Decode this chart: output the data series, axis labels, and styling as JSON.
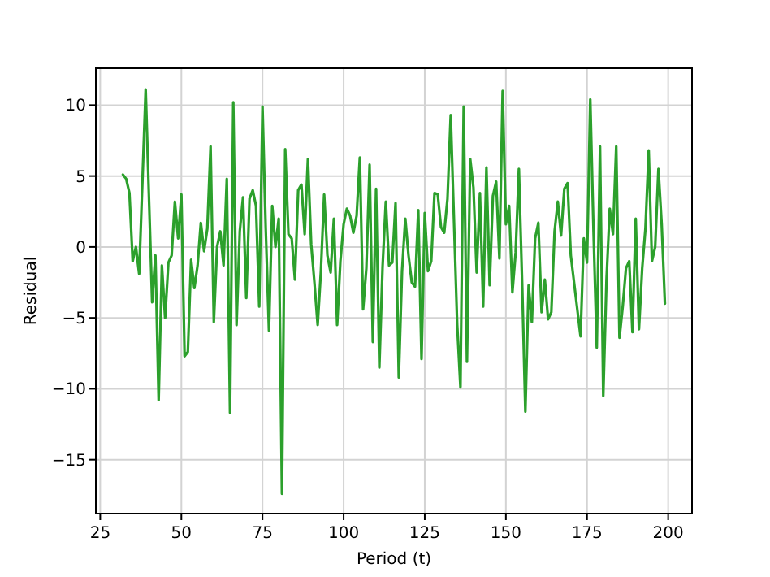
{
  "chart_data": {
    "type": "line",
    "xlabel": "Period (t)",
    "ylabel": "Residual",
    "xlim": [
      23.65,
      207.35
    ],
    "xticks": [
      25,
      50,
      75,
      100,
      125,
      150,
      175,
      200
    ],
    "ylim": [
      -18.8,
      12.6
    ],
    "yticks": [
      -15,
      -10,
      -5,
      0,
      5,
      10
    ],
    "grid": true,
    "marker": "none",
    "line_style": "solid",
    "series": [
      {
        "color": "#2ca02c",
        "x": [
          32,
          33,
          34,
          35,
          36,
          37,
          39,
          41,
          42,
          43,
          44,
          45,
          46,
          47,
          48,
          49,
          50,
          51,
          52,
          53,
          54,
          55,
          56,
          57,
          58,
          59,
          60,
          61,
          62,
          63,
          64,
          65,
          66,
          67,
          68,
          69,
          70,
          71,
          72,
          73,
          74,
          75,
          76,
          77,
          78,
          79,
          80,
          81,
          82,
          83,
          84,
          85,
          86,
          87,
          88,
          89,
          90,
          91,
          92,
          93,
          94,
          95,
          96,
          97,
          98,
          99,
          100,
          101,
          102,
          103,
          104,
          105,
          106,
          107,
          108,
          109,
          110,
          111,
          112,
          113,
          114,
          115,
          116,
          117,
          118,
          119,
          120,
          121,
          122,
          123,
          124,
          125,
          126,
          127,
          128,
          129,
          130,
          131,
          132,
          133,
          134,
          135,
          136,
          137,
          138,
          139,
          140,
          141,
          142,
          143,
          144,
          145,
          146,
          147,
          148,
          149,
          150,
          151,
          152,
          153,
          154,
          155,
          156,
          157,
          158,
          159,
          160,
          161,
          162,
          163,
          164,
          165,
          166,
          167,
          168,
          169,
          170,
          173,
          174,
          175,
          176,
          177,
          178,
          179,
          180,
          181,
          182,
          183,
          184,
          185,
          186,
          187,
          188,
          189,
          190,
          191,
          192,
          193,
          194,
          195,
          196,
          197,
          198,
          199
        ],
        "values": [
          5.1,
          4.8,
          3.8,
          -1.0,
          0,
          -1.9,
          11.1,
          -3.9,
          -0.6,
          -10.8,
          -1.3,
          -5.0,
          -1.1,
          -0.6,
          3.2,
          0.6,
          3.7,
          -7.7,
          -7.4,
          -0.9,
          -2.9,
          -1.3,
          1.7,
          -0.3,
          1.3,
          7.1,
          -5.3,
          0,
          1.1,
          -1.3,
          4.8,
          -11.7,
          10.2,
          -5.5,
          1.1,
          3.5,
          -3.6,
          3.4,
          4.0,
          2.9,
          -4.2,
          9.9,
          1.3,
          -5.9,
          2.9,
          0,
          2.0,
          -17.4,
          6.9,
          0.9,
          0.6,
          -2.3,
          4.0,
          4.4,
          0.9,
          6.2,
          0.2,
          -2.5,
          -5.5,
          -1.7,
          3.7,
          -0.6,
          -1.8,
          2.0,
          -5.5,
          -1.0,
          1.6,
          2.7,
          2.2,
          1.0,
          2.2,
          6.3,
          -4.4,
          -1.5,
          5.8,
          -6.7,
          4.1,
          -8.5,
          -1.4,
          3.2,
          -1.3,
          -1.1,
          3.1,
          -9.2,
          -1.7,
          2.0,
          -0.6,
          -2.5,
          -2.8,
          2.6,
          -7.9,
          2.4,
          -1.7,
          -1.0,
          3.8,
          3.7,
          1.4,
          1.0,
          3.4,
          9.3,
          1.9,
          -5.5,
          -9.9,
          9.9,
          -8.1,
          6.2,
          4.2,
          -1.8,
          3.8,
          -4.2,
          5.6,
          -2.7,
          3.6,
          4.6,
          -0.8,
          11.0,
          1.6,
          2.9,
          -3.2,
          -0.4,
          5.5,
          -2.5,
          -11.6,
          -2.7,
          -5.3,
          0.6,
          1.7,
          -4.6,
          -2.3,
          -5.1,
          -4.6,
          1.1,
          3.2,
          0.8,
          4.1,
          4.5,
          -0.6,
          -6.3,
          0.6,
          -1.1,
          10.4,
          1.1,
          -7.1,
          7.1,
          -10.5,
          -2.3,
          2.7,
          0.9,
          7.1,
          -6.4,
          -4.2,
          -1.5,
          -1.0,
          -6.0,
          2.0,
          -5.8,
          -1.5,
          1.3,
          6.8,
          -1.0,
          0,
          5.5,
          1.6,
          -4.0
        ]
      }
    ]
  }
}
